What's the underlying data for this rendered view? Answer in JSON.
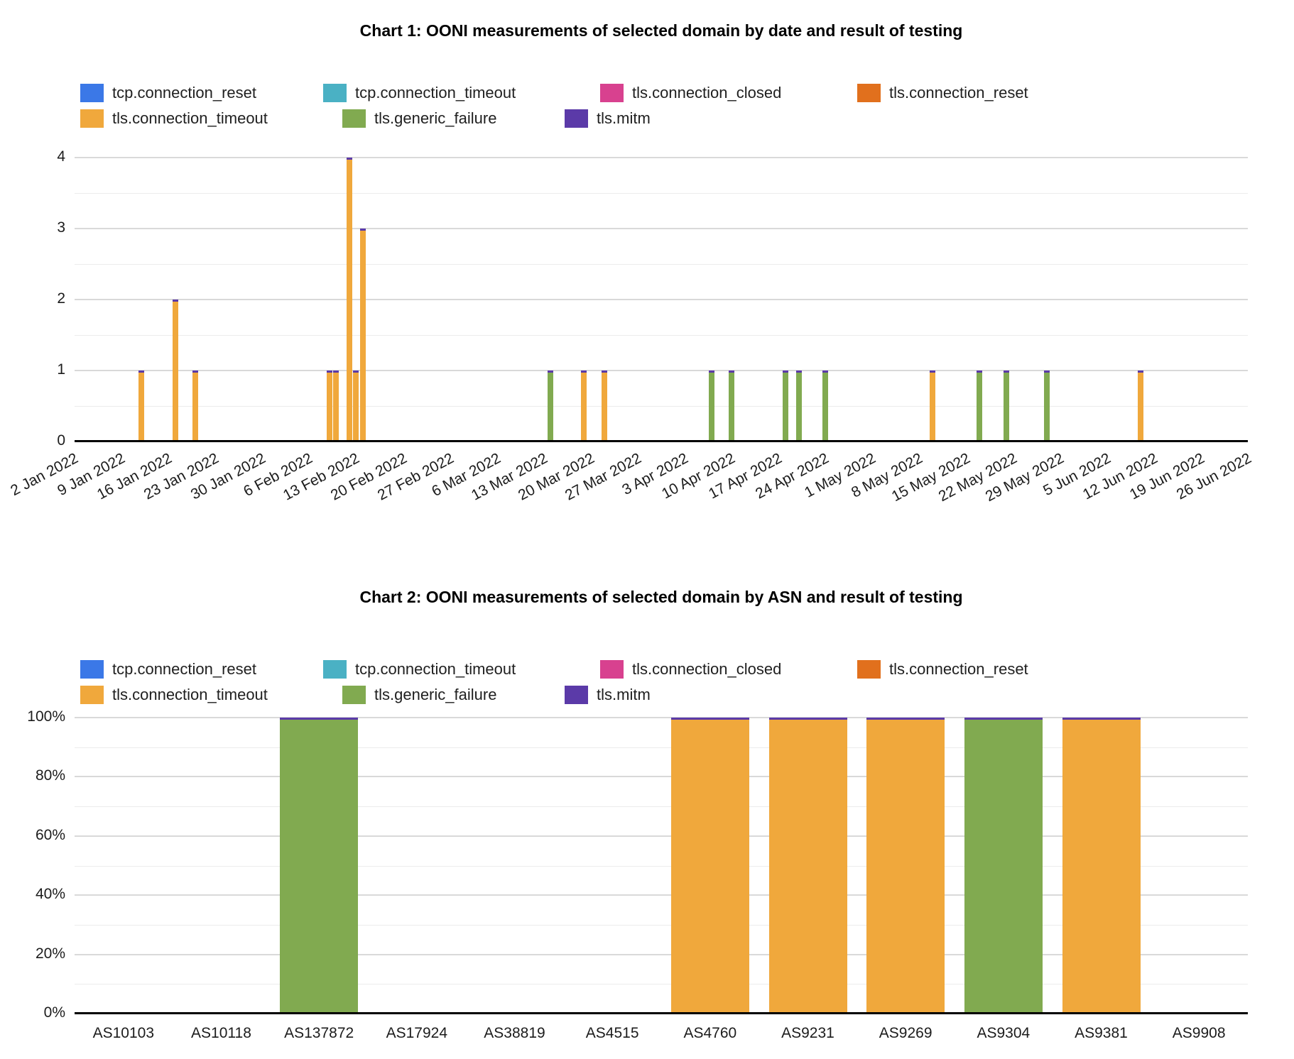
{
  "page": {
    "background": "#ffffff"
  },
  "legend": {
    "items": [
      {
        "label": "tcp.connection_reset",
        "color": "#3b78e7",
        "row": 1
      },
      {
        "label": "tcp.connection_timeout",
        "color": "#4ab1c4",
        "row": 1
      },
      {
        "label": "tls.connection_closed",
        "color": "#d8418f",
        "row": 1
      },
      {
        "label": "tls.connection_reset",
        "color": "#e1701d",
        "row": 1
      },
      {
        "label": "tls.connection_timeout",
        "color": "#f0a83c",
        "row": 2
      },
      {
        "label": "tls.generic_failure",
        "color": "#81aa50",
        "row": 2
      },
      {
        "label": "tls.mitm",
        "color": "#5b3aa8",
        "row": 2
      }
    ]
  },
  "chart_data": [
    {
      "type": "bar",
      "stacked": true,
      "title": "Chart 1: OONI measurements of selected domain by date and result of testing",
      "xlabel": "",
      "ylabel": "",
      "ylim": [
        0,
        4
      ],
      "y_ticks": [
        "0",
        "1",
        "2",
        "3",
        "4"
      ],
      "grid": true,
      "minor_grid_step": 0.5,
      "legend_position": "top",
      "bar_top_cap_color": "#5b3aa8",
      "x_start_date": "2 Jan 2022",
      "x_end_date": "26 Jun 2022",
      "x_ticks": [
        "2 Jan 2022",
        "9 Jan 2022",
        "16 Jan 2022",
        "23 Jan 2022",
        "30 Jan 2022",
        "6 Feb 2022",
        "13 Feb 2022",
        "20 Feb 2022",
        "27 Feb 2022",
        "6 Mar 2022",
        "13 Mar 2022",
        "20 Mar 2022",
        "27 Mar 2022",
        "3 Apr 2022",
        "10 Apr 2022",
        "17 Apr 2022",
        "24 Apr 2022",
        "1 May 2022",
        "8 May 2022",
        "15 May 2022",
        "22 May 2022",
        "29 May 2022",
        "5 Jun 2022",
        "12 Jun 2022",
        "19 Jun 2022",
        "26 Jun 2022"
      ],
      "bars": [
        {
          "date": "12 Jan 2022",
          "series": "tls.connection_timeout",
          "value": 1
        },
        {
          "date": "17 Jan 2022",
          "series": "tls.connection_timeout",
          "value": 2
        },
        {
          "date": "20 Jan 2022",
          "series": "tls.connection_timeout",
          "value": 1
        },
        {
          "date": "9 Feb 2022",
          "series": "tls.connection_timeout",
          "value": 1
        },
        {
          "date": "10 Feb 2022",
          "series": "tls.connection_timeout",
          "value": 1
        },
        {
          "date": "12 Feb 2022",
          "series": "tls.connection_timeout",
          "value": 4
        },
        {
          "date": "13 Feb 2022",
          "series": "tls.connection_timeout",
          "value": 1
        },
        {
          "date": "14 Feb 2022",
          "series": "tls.connection_timeout",
          "value": 3
        },
        {
          "date": "14 Mar 2022",
          "series": "tls.generic_failure",
          "value": 1
        },
        {
          "date": "19 Mar 2022",
          "series": "tls.connection_timeout",
          "value": 1
        },
        {
          "date": "22 Mar 2022",
          "series": "tls.connection_timeout",
          "value": 1
        },
        {
          "date": "7 Apr 2022",
          "series": "tls.generic_failure",
          "value": 1
        },
        {
          "date": "10 Apr 2022",
          "series": "tls.generic_failure",
          "value": 1
        },
        {
          "date": "18 Apr 2022",
          "series": "tls.generic_failure",
          "value": 1
        },
        {
          "date": "20 Apr 2022",
          "series": "tls.generic_failure",
          "value": 1
        },
        {
          "date": "24 Apr 2022",
          "series": "tls.generic_failure",
          "value": 1
        },
        {
          "date": "10 May 2022",
          "series": "tls.connection_timeout",
          "value": 1
        },
        {
          "date": "17 May 2022",
          "series": "tls.generic_failure",
          "value": 1
        },
        {
          "date": "21 May 2022",
          "series": "tls.generic_failure",
          "value": 1
        },
        {
          "date": "27 May 2022",
          "series": "tls.generic_failure",
          "value": 1
        },
        {
          "date": "10 Jun 2022",
          "series": "tls.connection_timeout",
          "value": 1
        }
      ]
    },
    {
      "type": "bar",
      "stacked_percent": true,
      "title": "Chart 2: OONI measurements of selected domain by ASN and result of testing",
      "xlabel": "",
      "ylabel": "",
      "ylim_percent": [
        0,
        100
      ],
      "y_ticks": [
        "0%",
        "20%",
        "40%",
        "60%",
        "80%",
        "100%"
      ],
      "grid": true,
      "minor_grid_step_percent": 10,
      "legend_position": "top",
      "bar_top_cap_color": "#5b3aa8",
      "categories": [
        "AS10103",
        "AS10118",
        "AS137872",
        "AS17924",
        "AS38819",
        "AS4515",
        "AS4760",
        "AS9231",
        "AS9269",
        "AS9304",
        "AS9381",
        "AS9908"
      ],
      "series": [
        {
          "name": "tcp.connection_reset",
          "values": [
            0,
            0,
            0,
            0,
            0,
            0,
            0,
            0,
            0,
            0,
            0,
            0
          ]
        },
        {
          "name": "tcp.connection_timeout",
          "values": [
            0,
            0,
            0,
            0,
            0,
            0,
            0,
            0,
            0,
            0,
            0,
            0
          ]
        },
        {
          "name": "tls.connection_closed",
          "values": [
            0,
            0,
            0,
            0,
            0,
            0,
            0,
            0,
            0,
            0,
            0,
            0
          ]
        },
        {
          "name": "tls.connection_reset",
          "values": [
            0,
            0,
            0,
            0,
            0,
            0,
            0,
            0,
            0,
            0,
            0,
            0
          ]
        },
        {
          "name": "tls.connection_timeout",
          "values": [
            0,
            0,
            0,
            0,
            0,
            0,
            100,
            100,
            100,
            0,
            100,
            0
          ]
        },
        {
          "name": "tls.generic_failure",
          "values": [
            0,
            0,
            100,
            0,
            0,
            0,
            0,
            0,
            0,
            100,
            0,
            0
          ]
        },
        {
          "name": "tls.mitm",
          "values": [
            0,
            0,
            0,
            0,
            0,
            0,
            0,
            0,
            0,
            0,
            0,
            0
          ]
        }
      ]
    }
  ]
}
